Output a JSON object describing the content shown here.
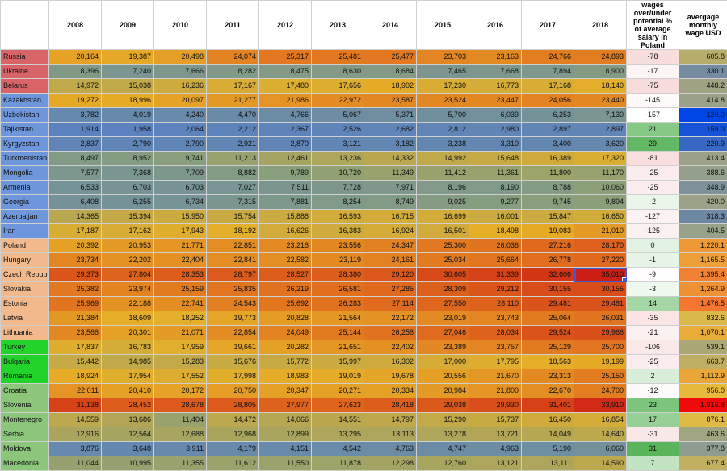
{
  "headers": {
    "corner": "",
    "years": [
      "2008",
      "2009",
      "2010",
      "2011",
      "2012",
      "2013",
      "2014",
      "2015",
      "2016",
      "2017",
      "2018"
    ],
    "pct": "wages over/under potential % of average salary in Poland",
    "usd": "avergage monthly wage USD"
  },
  "region_colors": {
    "russia": "#d96468",
    "central_asia": "#6d96dc",
    "central_europe": "#f2b98c",
    "balkans": "#8cc67a",
    "turkey": "#22d42a"
  },
  "rows": [
    {
      "country": "Russia",
      "region": "russia",
      "values": [
        "20,164",
        "19,387",
        "20,498",
        "24,074",
        "25,317",
        "25,481",
        "25,477",
        "23,703",
        "23,163",
        "24,766",
        "24,893"
      ],
      "pct": "-78",
      "usd": "605.8"
    },
    {
      "country": "Ukraine",
      "region": "russia",
      "values": [
        "8,396",
        "7,240",
        "7,666",
        "8,282",
        "8,475",
        "8,630",
        "8,684",
        "7,465",
        "7,668",
        "7,894",
        "8,900"
      ],
      "pct": "-17",
      "usd": "330.1"
    },
    {
      "country": "Belarus",
      "region": "russia",
      "values": [
        "14,972",
        "15,038",
        "16,236",
        "17,167",
        "17,480",
        "17,656",
        "18,902",
        "17,230",
        "16,773",
        "17,168",
        "18,140"
      ],
      "pct": "-75",
      "usd": "448.2"
    },
    {
      "country": "Kazakhstan",
      "region": "central_asia",
      "values": [
        "19,272",
        "18,996",
        "20,097",
        "21,277",
        "21,986",
        "22,972",
        "23,587",
        "23,524",
        "23,447",
        "24,056",
        "23,440"
      ],
      "pct": "-145",
      "usd": "414.8"
    },
    {
      "country": "Uzbekistan",
      "region": "central_asia",
      "values": [
        "3,782",
        "4,019",
        "4,240",
        "4,470",
        "4,766",
        "5,067",
        "5,371",
        "5,700",
        "6,039",
        "6,253",
        "7,130"
      ],
      "pct": "-157",
      "usd": "120.0"
    },
    {
      "country": "Tajikistan",
      "region": "central_asia",
      "values": [
        "1,914",
        "1,958",
        "2,064",
        "2,212",
        "2,367",
        "2,526",
        "2,682",
        "2,812",
        "2,980",
        "2,897",
        "2,897"
      ],
      "pct": "21",
      "usd": "159.0"
    },
    {
      "country": "Kyrgyzstan",
      "region": "central_asia",
      "values": [
        "2,837",
        "2,790",
        "2,790",
        "2,921",
        "2,870",
        "3,121",
        "3,182",
        "3,238",
        "3,310",
        "3,400",
        "3,620"
      ],
      "pct": "29",
      "usd": "220.9"
    },
    {
      "country": "Turkmenistan",
      "region": "central_asia",
      "values": [
        "8,497",
        "8,952",
        "9,741",
        "11,213",
        "12,461",
        "13,236",
        "14,332",
        "14,992",
        "15,648",
        "16,389",
        "17,320"
      ],
      "pct": "-81",
      "usd": "413.4"
    },
    {
      "country": "Mongolia",
      "region": "central_asia",
      "values": [
        "7,577",
        "7,368",
        "7,709",
        "8,882",
        "9,789",
        "10,720",
        "11,349",
        "11,412",
        "11,361",
        "11,800",
        "11,170"
      ],
      "pct": "-25",
      "usd": "388.6"
    },
    {
      "country": "Armenia",
      "region": "central_asia",
      "values": [
        "6,533",
        "6,703",
        "6,703",
        "7,027",
        "7,511",
        "7,728",
        "7,971",
        "8,196",
        "8,190",
        "8,788",
        "10,060"
      ],
      "pct": "-25",
      "usd": "348.9"
    },
    {
      "country": "Georgia",
      "region": "central_asia",
      "values": [
        "6,408",
        "6,255",
        "6,734",
        "7,315",
        "7,881",
        "8,254",
        "8,749",
        "9,025",
        "9,277",
        "9,745",
        "9,894"
      ],
      "pct": "-2",
      "usd": "420.0"
    },
    {
      "country": "Azerbaijan",
      "region": "central_asia",
      "values": [
        "14,365",
        "15,394",
        "15,950",
        "15,754",
        "15,888",
        "16,593",
        "16,715",
        "16,699",
        "16,001",
        "15,847",
        "16,650"
      ],
      "pct": "-127",
      "usd": "318.3"
    },
    {
      "country": "Iran",
      "region": "central_asia",
      "values": [
        "17,187",
        "17,162",
        "17,943",
        "18,192",
        "16,626",
        "16,383",
        "16,924",
        "16,501",
        "18,498",
        "19,083",
        "21,010"
      ],
      "pct": "-125",
      "usd": "404.5"
    },
    {
      "country": "Poland",
      "region": "central_europe",
      "values": [
        "20,392",
        "20,953",
        "21,771",
        "22,851",
        "23,218",
        "23,556",
        "24,347",
        "25,300",
        "26,036",
        "27,216",
        "28,170"
      ],
      "pct": "0",
      "usd": "1,220.1"
    },
    {
      "country": "Hungary",
      "region": "central_europe",
      "values": [
        "23,734",
        "22,202",
        "22,404",
        "22,841",
        "22,582",
        "23,119",
        "24,161",
        "25,034",
        "25,664",
        "26,778",
        "27,220"
      ],
      "pct": "-1",
      "usd": "1,165.5"
    },
    {
      "country": "Czech Republic",
      "region": "central_europe",
      "values": [
        "29,373",
        "27,804",
        "28,353",
        "28,797",
        "28,527",
        "28,380",
        "29,120",
        "30,605",
        "31,339",
        "32,606",
        "35,010"
      ],
      "pct": "-9",
      "usd": "1,395.4"
    },
    {
      "country": "Slovakia",
      "region": "central_europe",
      "values": [
        "25,382",
        "23,974",
        "25,159",
        "25,835",
        "26,219",
        "26,581",
        "27,285",
        "28,309",
        "29,212",
        "30,155",
        "30,155"
      ],
      "pct": "-3",
      "usd": "1,264.9"
    },
    {
      "country": "Estonia",
      "region": "central_europe",
      "values": [
        "25,969",
        "22,188",
        "22,741",
        "24,543",
        "25,692",
        "26,283",
        "27,114",
        "27,550",
        "28,110",
        "29,481",
        "29,481"
      ],
      "pct": "14",
      "usd": "1,476.5"
    },
    {
      "country": "Latvia",
      "region": "central_europe",
      "values": [
        "21,384",
        "18,609",
        "18,252",
        "19,773",
        "20,828",
        "21,564",
        "22,172",
        "23,019",
        "23,743",
        "25,064",
        "26,031"
      ],
      "pct": "-35",
      "usd": "832.6"
    },
    {
      "country": "Lithuania",
      "region": "central_europe",
      "values": [
        "23,568",
        "20,301",
        "21,071",
        "22,854",
        "24,049",
        "25,144",
        "26,258",
        "27,046",
        "28,034",
        "29,524",
        "29,966"
      ],
      "pct": "-21",
      "usd": "1,070.1"
    },
    {
      "country": "Turkey",
      "region": "turkey",
      "values": [
        "17,837",
        "16,783",
        "17,959",
        "19,661",
        "20,282",
        "21,651",
        "22,402",
        "23,389",
        "23,757",
        "25,129",
        "25,700"
      ],
      "pct": "-106",
      "usd": "539.1"
    },
    {
      "country": "Bulgaria",
      "region": "turkey",
      "values": [
        "15,442",
        "14,985",
        "15,283",
        "15,676",
        "15,772",
        "15,997",
        "16,302",
        "17,000",
        "17,795",
        "18,563",
        "19,199"
      ],
      "pct": "-25",
      "usd": "663.7"
    },
    {
      "country": "Romania",
      "region": "turkey",
      "values": [
        "18,924",
        "17,954",
        "17,552",
        "17,998",
        "18,983",
        "19,019",
        "19,678",
        "20,556",
        "21,670",
        "23,313",
        "25,150"
      ],
      "pct": "2",
      "usd": "1,112.9"
    },
    {
      "country": "Croatia",
      "region": "balkans",
      "values": [
        "22,011",
        "20,410",
        "20,172",
        "20,750",
        "20,347",
        "20,271",
        "20,334",
        "20,984",
        "21,800",
        "22,670",
        "24,700"
      ],
      "pct": "-12",
      "usd": "956.0"
    },
    {
      "country": "Slovenia",
      "region": "balkans",
      "values": [
        "31,138",
        "28,452",
        "28,678",
        "28,805",
        "27,977",
        "27,623",
        "28,418",
        "29,038",
        "29,930",
        "31,401",
        "33,910"
      ],
      "pct": "23",
      "usd": "1,916.8"
    },
    {
      "country": "Montenegro",
      "region": "balkans",
      "values": [
        "14,559",
        "13,686",
        "11,404",
        "14,472",
        "14,066",
        "14,551",
        "14,797",
        "15,290",
        "15,737",
        "16,450",
        "16,854"
      ],
      "pct": "17",
      "usd": "876.1"
    },
    {
      "country": "Serbia",
      "region": "balkans",
      "values": [
        "12,916",
        "12,564",
        "12,688",
        "12,968",
        "12,899",
        "13,295",
        "13,113",
        "13,278",
        "13,721",
        "14,049",
        "14,640"
      ],
      "pct": "-31",
      "usd": "463.6"
    },
    {
      "country": "Moldova",
      "region": "balkans",
      "values": [
        "3,876",
        "3,648",
        "3,911",
        "4,179",
        "4,151",
        "4,542",
        "4,763",
        "4,747",
        "4,963",
        "5,190",
        "6,060"
      ],
      "pct": "31",
      "usd": "377.8"
    },
    {
      "country": "Macedonia",
      "region": "balkans",
      "values": [
        "11,044",
        "10,995",
        "11,355",
        "11,612",
        "11,550",
        "11,878",
        "12,298",
        "12,760",
        "13,121",
        "13,111",
        "14,590"
      ],
      "pct": "7",
      "usd": "677.4"
    }
  ]
}
